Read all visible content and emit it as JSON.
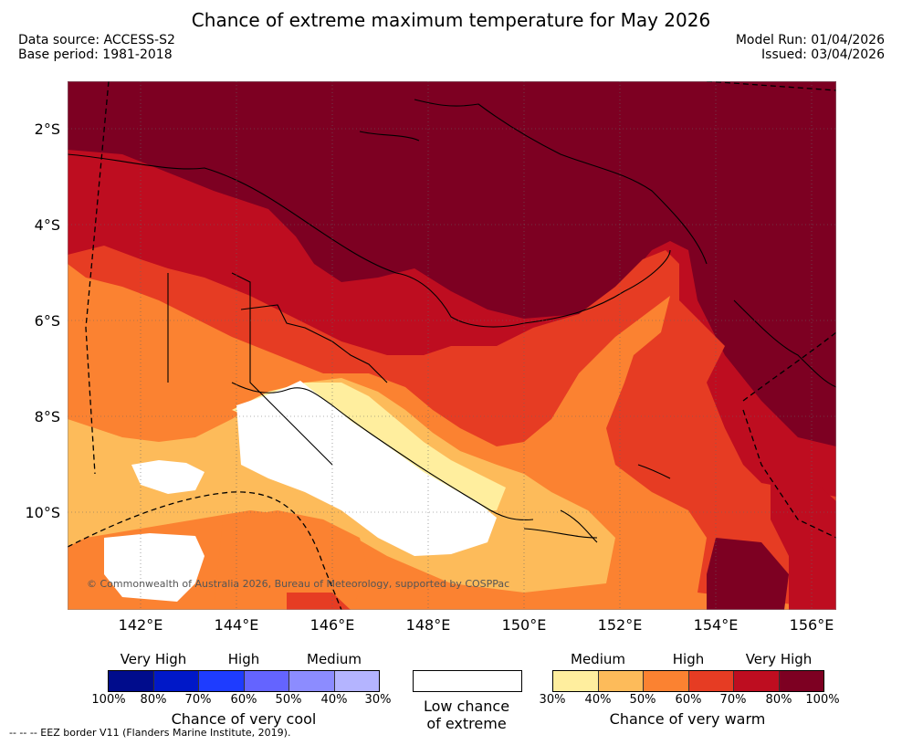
{
  "title": "Chance of extreme maximum temperature for May 2026",
  "meta": {
    "data_source": "Data source: ACCESS-S2",
    "base_period": "Base period: 1981-2018",
    "model_run": "Model Run: 01/04/2026",
    "issued": "Issued: 03/04/2026"
  },
  "map": {
    "lat_labels": [
      "2°S",
      "4°S",
      "6°S",
      "8°S",
      "10°S"
    ],
    "lon_labels": [
      "142°E",
      "144°E",
      "146°E",
      "148°E",
      "150°E",
      "152°E",
      "154°E",
      "156°E"
    ],
    "credit": "© Commonwealth of Australia 2026, Bureau of Meteorology, supported by COSPPac"
  },
  "legend": {
    "cool": {
      "levels": [
        "Very High",
        "High",
        "Medium"
      ],
      "colors": [
        "#000c8c",
        "#0018c8",
        "#1e3cff",
        "#6464ff",
        "#8c8cff",
        "#b4b4ff"
      ],
      "ticks": [
        "100%",
        "80%",
        "70%",
        "60%",
        "50%",
        "40%",
        "30%"
      ],
      "title": "Chance of very cool"
    },
    "low": {
      "title_line1": "Low chance",
      "title_line2": "of extreme",
      "color": "#ffffff"
    },
    "warm": {
      "levels": [
        "Medium",
        "High",
        "Very High"
      ],
      "colors": [
        "#ffee9e",
        "#fdbb5a",
        "#fb8231",
        "#e63c23",
        "#be0d20",
        "#7d0022"
      ],
      "ticks": [
        "30%",
        "40%",
        "50%",
        "60%",
        "70%",
        "80%",
        "100%"
      ],
      "title": "Chance of very warm"
    }
  },
  "footnote": "-- -- -- EEZ border V11 (Flanders Marine Institute, 2019)."
}
